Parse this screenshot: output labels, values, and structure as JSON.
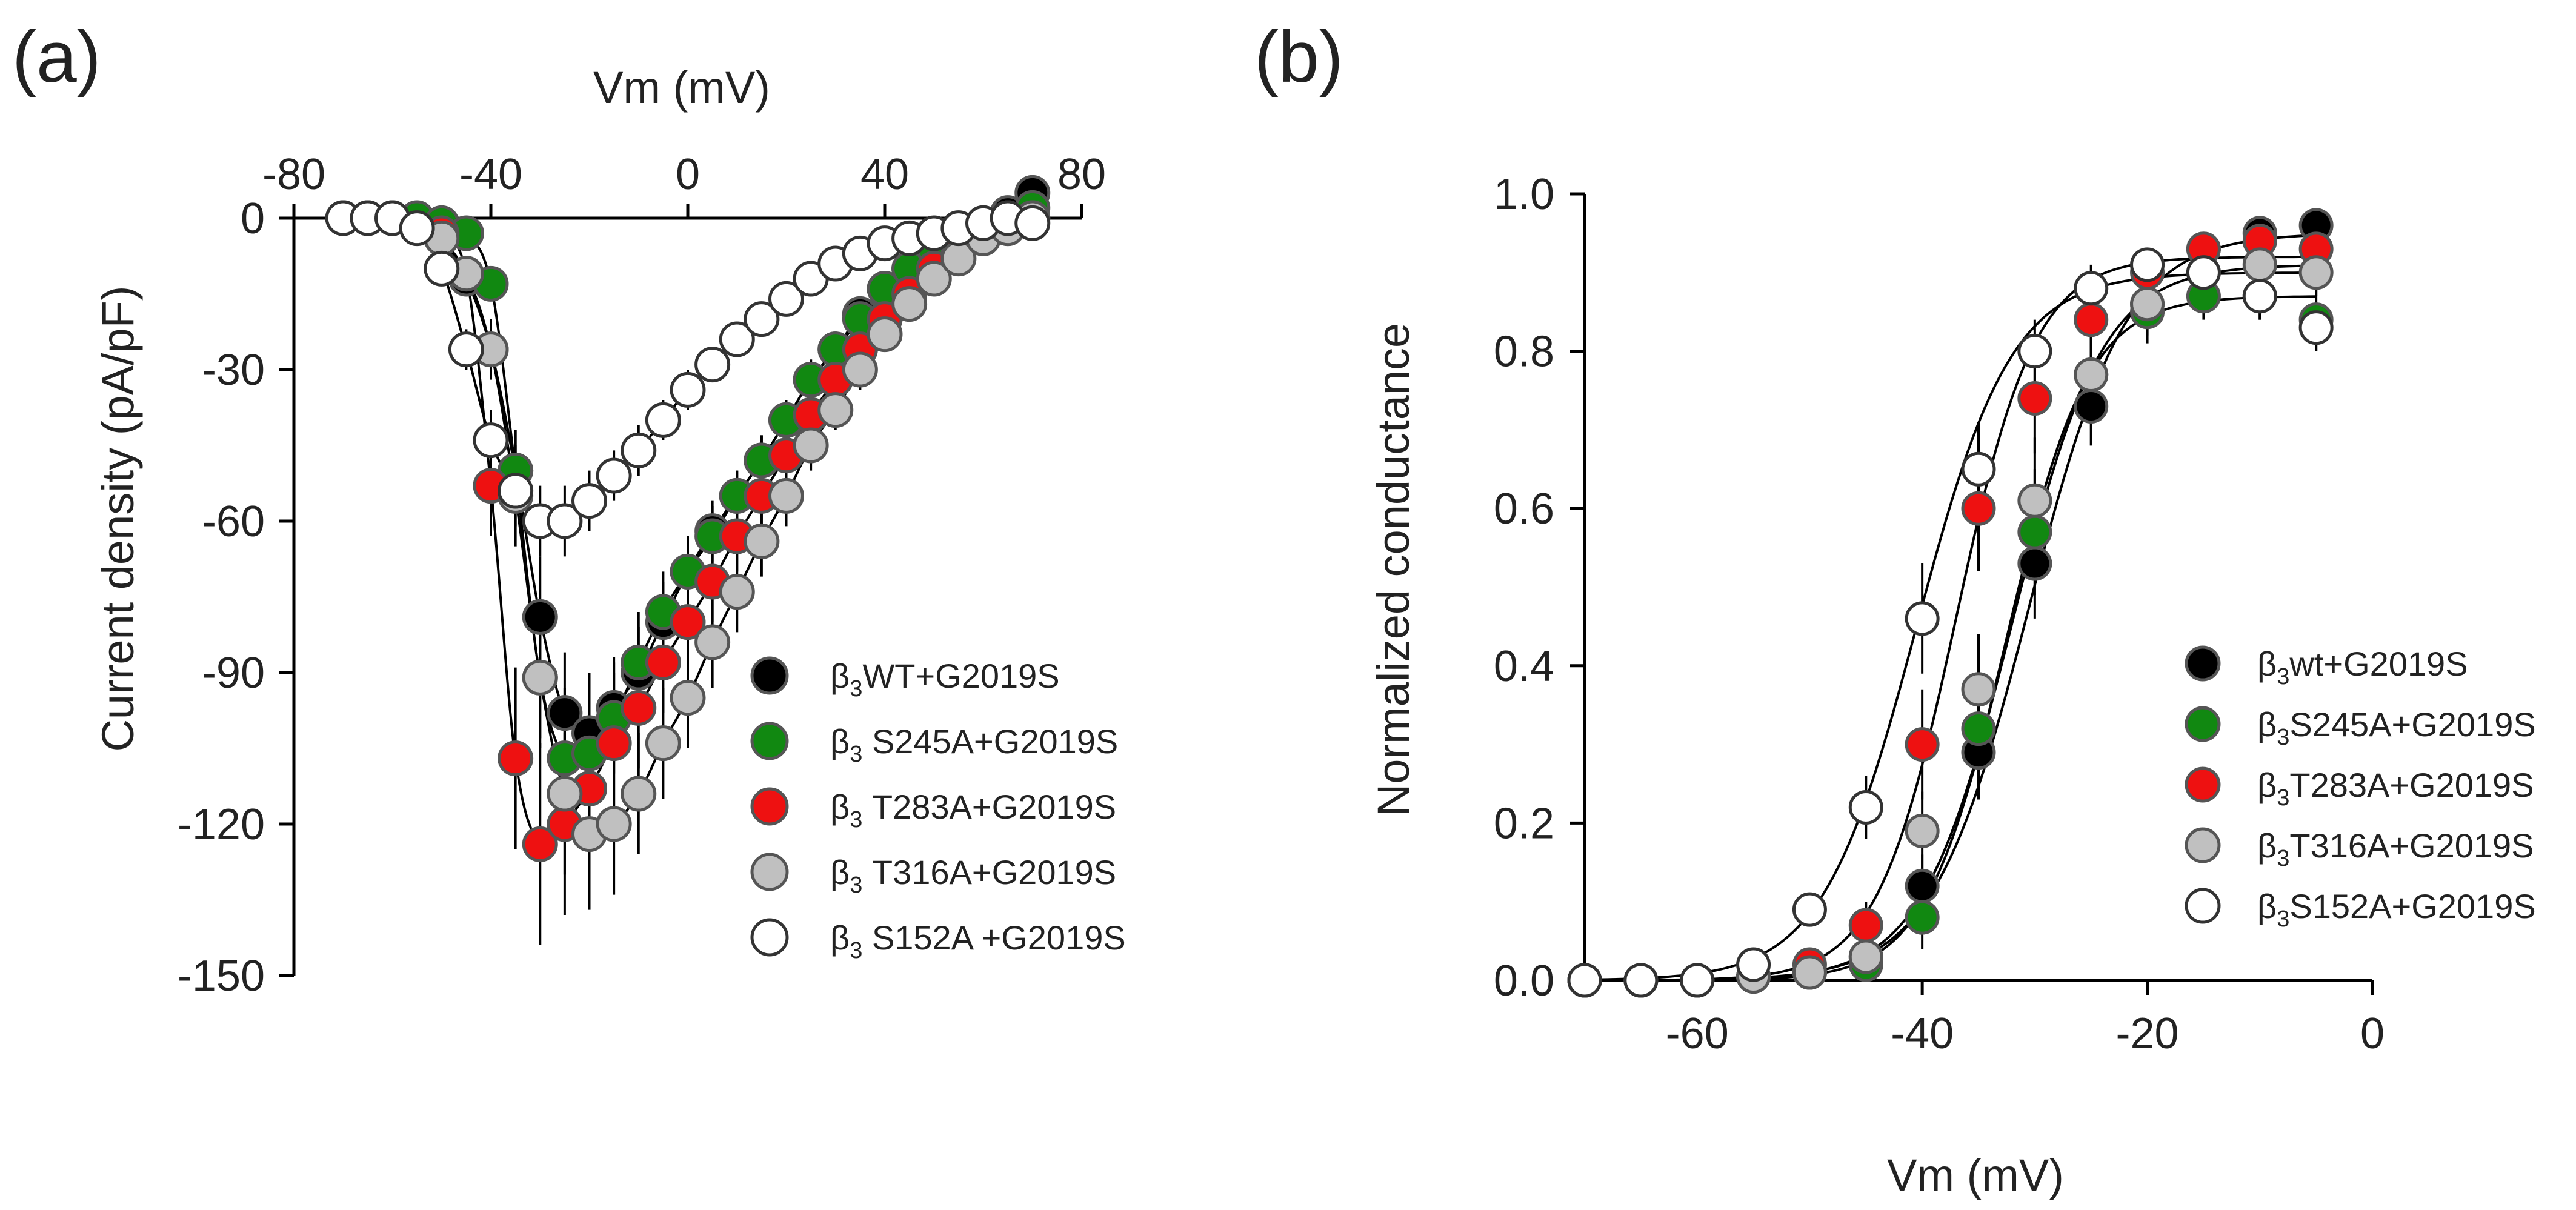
{
  "figure": {
    "panels": [
      {
        "letter": "(a)"
      },
      {
        "letter": "(b)"
      }
    ]
  },
  "chart_data": [
    {
      "type": "scatter",
      "panel": "(a)",
      "xlabel": "Vm (mV)",
      "ylabel": "Current density (pA/pF)",
      "xlim": [
        -80,
        80
      ],
      "ylim": [
        -150,
        0
      ],
      "xticks": [
        -80,
        -40,
        0,
        40,
        80
      ],
      "yticks": [
        0,
        -30,
        -60,
        -90,
        -120,
        -150
      ],
      "x_axis_position": "top",
      "legend_position": "right",
      "series": [
        {
          "name": "WT+G2019S",
          "prefix": "β",
          "sub": "3",
          "color": "#000000",
          "stroke": "#555555",
          "x": [
            -70,
            -65,
            -60,
            -55,
            -50,
            -45,
            -40,
            -35,
            -30,
            -25,
            -20,
            -15,
            -10,
            -5,
            0,
            5,
            10,
            15,
            20,
            25,
            30,
            35,
            40,
            45,
            50,
            55,
            60,
            65,
            70
          ],
          "y": [
            0,
            0,
            0,
            -1,
            -4,
            -12,
            -26,
            -50,
            -79,
            -98,
            -102,
            -97,
            -90,
            -80,
            -70,
            -62,
            -55,
            -48,
            -40,
            -32,
            -26,
            -19,
            -14,
            -10,
            -6,
            -3,
            -1,
            1,
            5
          ],
          "err": [
            0,
            0,
            0,
            0,
            1,
            3,
            5,
            8,
            12,
            12,
            12,
            10,
            9,
            8,
            7,
            6,
            5,
            5,
            4,
            4,
            3,
            3,
            2,
            2,
            2,
            1,
            1,
            1,
            1
          ]
        },
        {
          "name": " S245A+G2019S",
          "prefix": "β",
          "sub": "3",
          "color": "#118811",
          "stroke": "#555555",
          "x": [
            -70,
            -65,
            -60,
            -55,
            -50,
            -45,
            -40,
            -35,
            -30,
            -25,
            -20,
            -15,
            -10,
            -5,
            0,
            5,
            10,
            15,
            20,
            25,
            30,
            35,
            40,
            45,
            50,
            55,
            60,
            65,
            70
          ],
          "y": [
            0,
            0,
            0,
            0,
            -1,
            -3,
            -13,
            -50,
            -91,
            -107,
            -106,
            -99,
            -88,
            -78,
            -70,
            -63,
            -55,
            -48,
            -40,
            -32,
            -26,
            -20,
            -14,
            -10,
            -6,
            -3,
            -1,
            0,
            2
          ],
          "err": [
            0,
            0,
            0,
            0,
            0,
            1,
            3,
            8,
            12,
            14,
            13,
            11,
            10,
            8,
            7,
            6,
            5,
            5,
            4,
            4,
            3,
            3,
            2,
            2,
            2,
            1,
            1,
            1,
            1
          ]
        },
        {
          "name": " T283A+G2019S",
          "prefix": "β",
          "sub": "3",
          "color": "#ee1111",
          "stroke": "#555555",
          "x": [
            -50,
            -45,
            -40,
            -35,
            -30,
            -25,
            -20,
            -15,
            -10,
            -5,
            0,
            5,
            10,
            15,
            20,
            25,
            30,
            35,
            40,
            45,
            50,
            55,
            60,
            65,
            70
          ],
          "y": [
            -3,
            -11,
            -53,
            -107,
            -124,
            -120,
            -113,
            -104,
            -97,
            -88,
            -80,
            -72,
            -63,
            -55,
            -47,
            -39,
            -32,
            -26,
            -20,
            -15,
            -10,
            -7,
            -4,
            -2,
            0
          ],
          "err": [
            1,
            3,
            10,
            18,
            20,
            18,
            16,
            14,
            12,
            10,
            9,
            8,
            7,
            6,
            5,
            5,
            4,
            3,
            3,
            2,
            2,
            1,
            1,
            1,
            1
          ]
        },
        {
          "name": " T316A+G2019S",
          "prefix": "β",
          "sub": "3",
          "color": "#c0c0c0",
          "stroke": "#555555",
          "x": [
            -50,
            -45,
            -40,
            -35,
            -30,
            -25,
            -20,
            -15,
            -10,
            -5,
            0,
            5,
            10,
            15,
            20,
            25,
            30,
            35,
            40,
            45,
            50,
            55,
            60,
            65,
            70
          ],
          "y": [
            -4,
            -11,
            -26,
            -55,
            -91,
            -114,
            -122,
            -120,
            -114,
            -104,
            -95,
            -84,
            -74,
            -64,
            -55,
            -45,
            -38,
            -30,
            -23,
            -17,
            -12,
            -8,
            -4,
            -2,
            0
          ],
          "err": [
            1,
            3,
            6,
            10,
            14,
            16,
            15,
            14,
            12,
            11,
            10,
            9,
            8,
            7,
            6,
            5,
            4,
            4,
            3,
            3,
            2,
            2,
            1,
            1,
            1
          ]
        },
        {
          "name": " S152A +G2019S",
          "prefix": "β",
          "sub": "3",
          "color": "#ffffff",
          "stroke": "#333333",
          "x": [
            -70,
            -65,
            -60,
            -55,
            -50,
            -45,
            -40,
            -35,
            -30,
            -25,
            -20,
            -15,
            -10,
            -5,
            0,
            5,
            10,
            15,
            20,
            25,
            30,
            35,
            40,
            45,
            50,
            55,
            60,
            65,
            70
          ],
          "y": [
            0,
            0,
            0,
            -2,
            -10,
            -26,
            -44,
            -54,
            -60,
            -60,
            -56,
            -51,
            -46,
            -40,
            -34,
            -29,
            -24,
            -20,
            -16,
            -12,
            -9,
            -7,
            -5,
            -4,
            -3,
            -2,
            -1,
            0,
            -1
          ],
          "err": [
            0,
            0,
            0,
            0,
            2,
            4,
            6,
            7,
            7,
            7,
            6,
            5,
            5,
            4,
            4,
            3,
            3,
            3,
            2,
            2,
            2,
            1,
            1,
            1,
            1,
            1,
            1,
            1,
            1
          ]
        }
      ]
    },
    {
      "type": "scatter",
      "panel": "(b)",
      "xlabel": "Vm (mV)",
      "ylabel": "Normalized conductance",
      "xlim": [
        -70,
        0
      ],
      "ylim": [
        0,
        1
      ],
      "xticks": [
        -60,
        -40,
        -20,
        0
      ],
      "yticks": [
        0.0,
        0.2,
        0.4,
        0.6,
        0.8,
        1.0
      ],
      "ytick_labels": [
        "0.0",
        "0.2",
        "0.4",
        "0.6",
        "0.8",
        "1.0"
      ],
      "legend_position": "right",
      "series": [
        {
          "name": "wt+G2019S",
          "prefix": "β",
          "sub": "3",
          "color": "#000000",
          "stroke": "#555555",
          "x": [
            -70,
            -65,
            -60,
            -55,
            -50,
            -45,
            -40,
            -35,
            -30,
            -25,
            -20,
            -15,
            -10,
            -5
          ],
          "y": [
            0,
            0,
            0,
            0.005,
            0.01,
            0.03,
            0.12,
            0.29,
            0.53,
            0.73,
            0.86,
            0.93,
            0.95,
            0.96
          ],
          "err": [
            0,
            0,
            0,
            0.005,
            0.01,
            0.02,
            0.04,
            0.06,
            0.07,
            0.05,
            0.03,
            0.02,
            0.02,
            0.02
          ],
          "fit": {
            "v50": -30.5,
            "k": 4.3,
            "gmax": 0.95
          }
        },
        {
          "name": "S245A+G2019S",
          "prefix": "β",
          "sub": "3",
          "color": "#118811",
          "stroke": "#555555",
          "x": [
            -70,
            -65,
            -60,
            -55,
            -50,
            -45,
            -40,
            -35,
            -30,
            -25,
            -20,
            -15,
            -10,
            -5
          ],
          "y": [
            0,
            0,
            0,
            0.005,
            0.01,
            0.02,
            0.08,
            0.32,
            0.57,
            0.77,
            0.85,
            0.87,
            0.87,
            0.84
          ],
          "err": [
            0,
            0,
            0,
            0.005,
            0.01,
            0.02,
            0.04,
            0.07,
            0.08,
            0.06,
            0.04,
            0.03,
            0.03,
            0.04
          ],
          "fit": {
            "v50": -32.5,
            "k": 3.6,
            "gmax": 0.87
          }
        },
        {
          "name": "T283A+G2019S",
          "prefix": "β",
          "sub": "3",
          "color": "#ee1111",
          "stroke": "#555555",
          "x": [
            -70,
            -65,
            -60,
            -55,
            -50,
            -45,
            -40,
            -35,
            -30,
            -25,
            -20,
            -15,
            -10,
            -5
          ],
          "y": [
            0,
            0,
            0,
            0.005,
            0.02,
            0.07,
            0.3,
            0.6,
            0.74,
            0.84,
            0.9,
            0.93,
            0.94,
            0.93
          ],
          "err": [
            0,
            0,
            0,
            0.005,
            0.01,
            0.03,
            0.07,
            0.08,
            0.07,
            0.05,
            0.03,
            0.02,
            0.02,
            0.02
          ],
          "fit": {
            "v50": -37.0,
            "k": 3.5,
            "gmax": 0.92
          }
        },
        {
          "name": "T316A+G2019S",
          "prefix": "β",
          "sub": "3",
          "color": "#c0c0c0",
          "stroke": "#555555",
          "x": [
            -70,
            -65,
            -60,
            -55,
            -50,
            -45,
            -40,
            -35,
            -30,
            -25,
            -20,
            -15,
            -10,
            -5
          ],
          "y": [
            0,
            0,
            0,
            0.005,
            0.01,
            0.03,
            0.19,
            0.37,
            0.61,
            0.77,
            0.86,
            0.9,
            0.91,
            0.9
          ],
          "err": [
            0,
            0,
            0,
            0.005,
            0.01,
            0.02,
            0.05,
            0.07,
            0.08,
            0.06,
            0.04,
            0.03,
            0.03,
            0.03
          ],
          "fit": {
            "v50": -32.0,
            "k": 4.0,
            "gmax": 0.91
          }
        },
        {
          "name": "S152A+G2019S",
          "prefix": "β",
          "sub": "3",
          "color": "#ffffff",
          "stroke": "#333333",
          "x": [
            -70,
            -65,
            -60,
            -55,
            -50,
            -45,
            -40,
            -35,
            -30,
            -25,
            -20,
            -15,
            -10,
            -5
          ],
          "y": [
            0,
            0,
            0,
            0.02,
            0.09,
            0.22,
            0.46,
            0.65,
            0.8,
            0.88,
            0.91,
            0.9,
            0.87,
            0.83
          ],
          "err": [
            0,
            0,
            0,
            0.01,
            0.02,
            0.04,
            0.07,
            0.06,
            0.04,
            0.03,
            0.02,
            0.02,
            0.03,
            0.03
          ],
          "fit": {
            "v50": -40.5,
            "k": 4.2,
            "gmax": 0.9
          }
        }
      ]
    }
  ]
}
